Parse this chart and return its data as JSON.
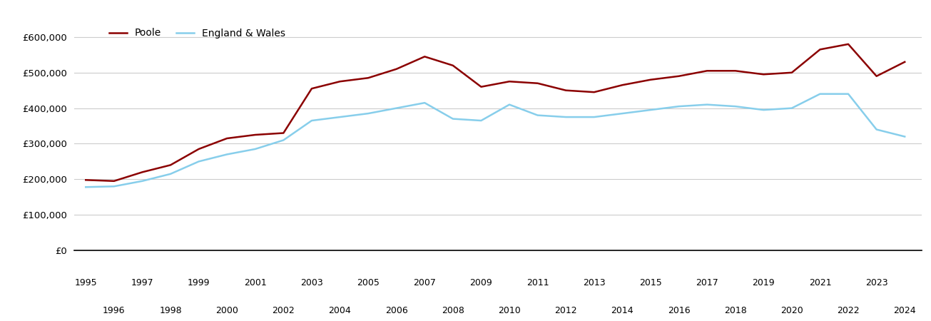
{
  "poole_years": [
    1995,
    1996,
    1997,
    1998,
    1999,
    2000,
    2001,
    2002,
    2003,
    2004,
    2005,
    2006,
    2007,
    2008,
    2009,
    2010,
    2011,
    2012,
    2013,
    2014,
    2015,
    2016,
    2017,
    2018,
    2019,
    2020,
    2021,
    2022,
    2023,
    2024
  ],
  "poole_values": [
    198000,
    195000,
    220000,
    240000,
    285000,
    315000,
    325000,
    330000,
    455000,
    475000,
    485000,
    510000,
    545000,
    520000,
    460000,
    475000,
    470000,
    450000,
    445000,
    465000,
    480000,
    490000,
    505000,
    505000,
    495000,
    500000,
    565000,
    580000,
    490000,
    530000
  ],
  "ew_years": [
    1995,
    1996,
    1997,
    1998,
    1999,
    2000,
    2001,
    2002,
    2003,
    2004,
    2005,
    2006,
    2007,
    2008,
    2009,
    2010,
    2011,
    2012,
    2013,
    2014,
    2015,
    2016,
    2017,
    2018,
    2019,
    2020,
    2021,
    2022,
    2023,
    2024
  ],
  "ew_values": [
    178000,
    180000,
    195000,
    215000,
    250000,
    270000,
    285000,
    310000,
    365000,
    375000,
    385000,
    400000,
    415000,
    370000,
    365000,
    410000,
    380000,
    375000,
    375000,
    385000,
    395000,
    405000,
    410000,
    405000,
    395000,
    400000,
    440000,
    440000,
    340000,
    320000
  ],
  "poole_color": "#8B0000",
  "ew_color": "#87CEEB",
  "legend_poole": "Poole",
  "legend_ew": "England & Wales",
  "ylim": [
    0,
    650000
  ],
  "yticks": [
    0,
    100000,
    200000,
    300000,
    400000,
    500000,
    600000
  ],
  "xlim_min": 1994.6,
  "xlim_max": 2024.6,
  "bg_color": "#ffffff",
  "grid_color": "#cccccc",
  "line_width": 1.8
}
